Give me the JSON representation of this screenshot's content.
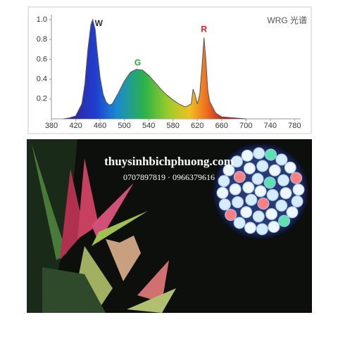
{
  "chart_data": {
    "type": "area",
    "legend_text": "WRG 光谱",
    "x": [
      400,
      410,
      420,
      430,
      435,
      440,
      445,
      448,
      452,
      455,
      460,
      465,
      470,
      475,
      480,
      490,
      500,
      510,
      520,
      530,
      540,
      550,
      560,
      570,
      580,
      590,
      600,
      610,
      613,
      616,
      620,
      624,
      628,
      631,
      634,
      637,
      640,
      645,
      650,
      655,
      660,
      680,
      700
    ],
    "values": [
      0,
      0.01,
      0.03,
      0.15,
      0.35,
      0.7,
      0.95,
      1.0,
      0.9,
      0.7,
      0.42,
      0.25,
      0.17,
      0.14,
      0.15,
      0.26,
      0.38,
      0.47,
      0.5,
      0.49,
      0.44,
      0.37,
      0.3,
      0.24,
      0.19,
      0.15,
      0.12,
      0.15,
      0.3,
      0.25,
      0.15,
      0.25,
      0.55,
      0.82,
      0.6,
      0.3,
      0.18,
      0.12,
      0.06,
      0.04,
      0.02,
      0.01,
      0
    ],
    "color": "#555555",
    "xlim": [
      380,
      790
    ],
    "ylim": [
      0,
      1.05
    ],
    "xticks": [
      380,
      420,
      460,
      500,
      540,
      580,
      620,
      660,
      700,
      740,
      780
    ],
    "yticks": [
      0.2,
      0.4,
      0.6,
      0.8,
      {
        "value": 1.0,
        "label": "1.0"
      }
    ],
    "annotations": [
      {
        "text": "W",
        "x": 458,
        "y": 0.96,
        "color": "#333333"
      },
      {
        "text": "G",
        "x": 522,
        "y": 0.56,
        "color": "#22aa22"
      },
      {
        "text": "R",
        "x": 631,
        "y": 0.9,
        "color": "#dd2222"
      }
    ]
  },
  "watermark": {
    "site": "thuysinhbichphuong.com",
    "phones": "0707897819 · 0966379616"
  }
}
